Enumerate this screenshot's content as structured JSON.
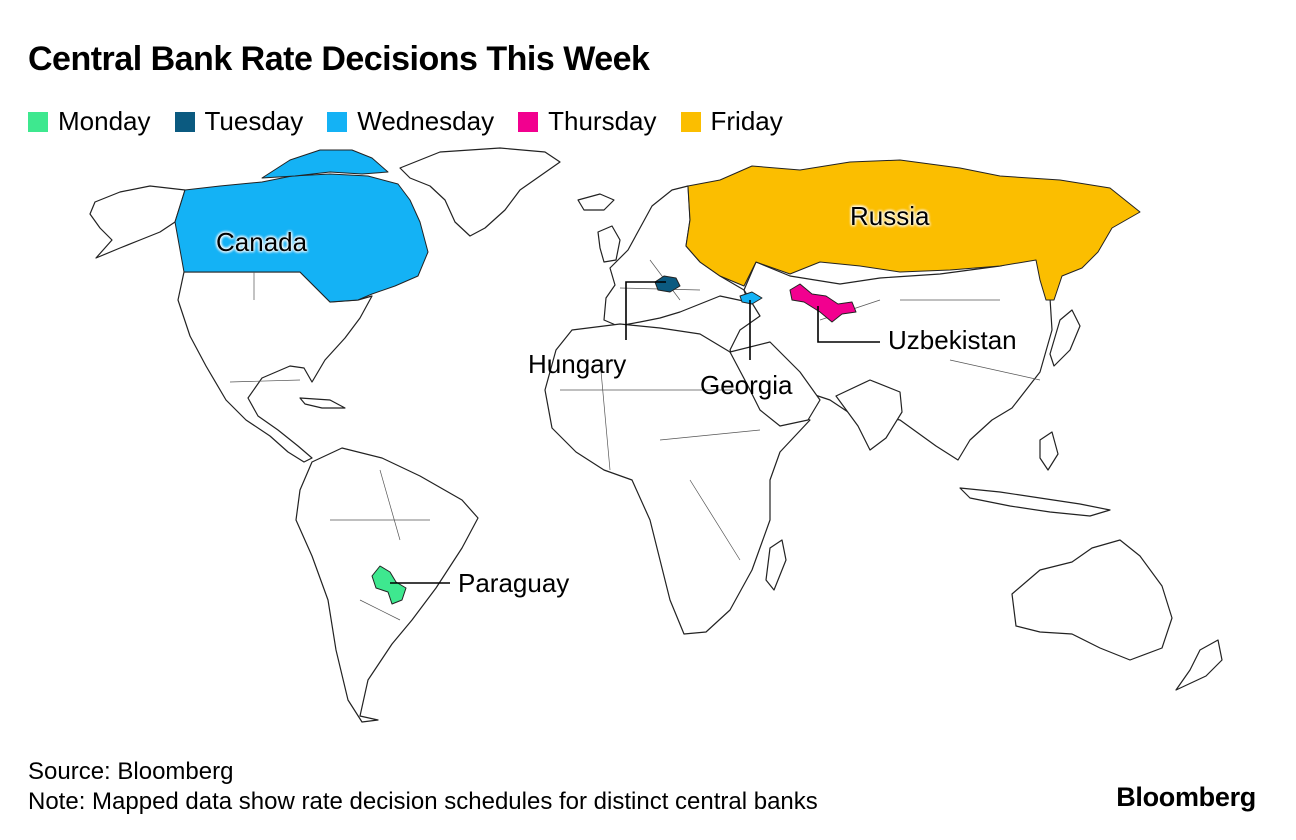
{
  "title": "Central Bank Rate Decisions This Week",
  "legend": [
    {
      "label": "Monday",
      "color": "#3ee88f"
    },
    {
      "label": "Tuesday",
      "color": "#0b5a80"
    },
    {
      "label": "Wednesday",
      "color": "#14b2f5"
    },
    {
      "label": "Thursday",
      "color": "#f2008f"
    },
    {
      "label": "Friday",
      "color": "#fbbe00"
    }
  ],
  "countries": {
    "canada": {
      "name": "Canada",
      "day": "Wednesday",
      "color": "#14b2f5"
    },
    "russia": {
      "name": "Russia",
      "day": "Friday",
      "color": "#fbbe00"
    },
    "hungary": {
      "name": "Hungary",
      "day": "Tuesday",
      "color": "#0b5a80"
    },
    "georgia": {
      "name": "Georgia",
      "day": "Wednesday",
      "color": "#14b2f5"
    },
    "uzbekistan": {
      "name": "Uzbekistan",
      "day": "Thursday",
      "color": "#f2008f"
    },
    "paraguay": {
      "name": "Paraguay",
      "day": "Monday",
      "color": "#3ee88f"
    }
  },
  "source": "Source: Bloomberg",
  "note": "Note: Mapped data show rate decision schedules for distinct central banks",
  "brand": "Bloomberg"
}
